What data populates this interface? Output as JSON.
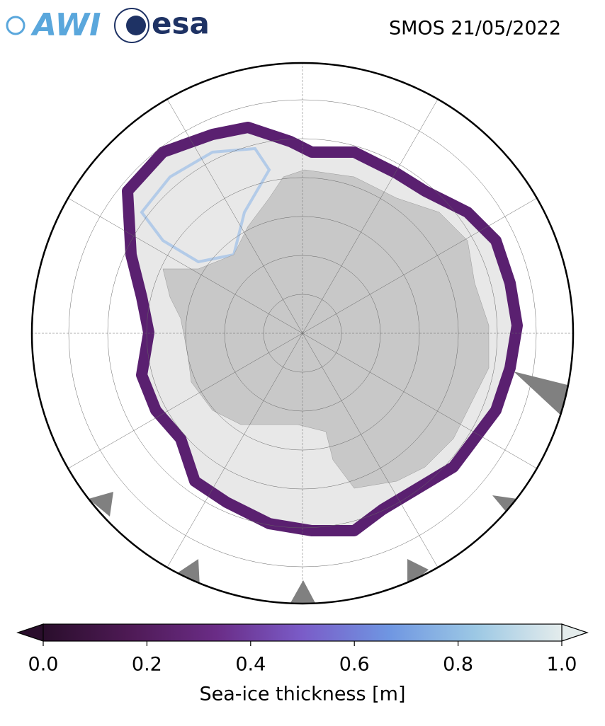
{
  "header": {
    "logos": [
      "AWI",
      "esa"
    ],
    "title": "SMOS 21/05/2022"
  },
  "colorbar": {
    "label": "Sea-ice thickness [m]",
    "lim": [
      0,
      1
    ],
    "colors": [
      "#2a0e2c",
      "#4e1a55",
      "#6a2c86",
      "#7a5cc8",
      "#6f96e2",
      "#9cc8e4",
      "#e4ecec"
    ],
    "ticks": [
      {
        "value": 0,
        "label": "0.0"
      },
      {
        "value": 0.2,
        "label": "0.2"
      },
      {
        "value": 0.4,
        "label": "0.4"
      },
      {
        "value": 0.6,
        "label": "0.6"
      },
      {
        "value": 0.8,
        "label": "0.8"
      },
      {
        "value": 1,
        "label": "1.0"
      }
    ]
  }
}
